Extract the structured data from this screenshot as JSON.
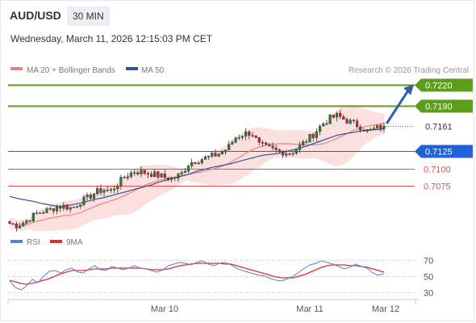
{
  "header": {
    "symbol": "AUD/USD",
    "interval": "30 MIN",
    "datetime": "Wednesday, March 11, 2026 12:15:03 PM CET"
  },
  "legend": {
    "ma20_label": "MA 20 + Bollinger Bands",
    "ma50_label": "MA 50",
    "credit": "Research © 2026 Trading Central",
    "rsi_label": "RSI",
    "ma9_label": "9MA"
  },
  "colors": {
    "resistance": "#5b9e1b",
    "support": "#1f63d6",
    "target": "#e74c4c",
    "current": "#333333",
    "ma20": "#f08080",
    "bands": "#fbd5d5",
    "ma50": "#2f5597",
    "rsi": "#5b7fd6",
    "rsi_ma": "#e03030",
    "candle_up": "#2e7d32",
    "candle_down": "#c62828",
    "arrow": "#2f5fa8"
  },
  "chart_data": [
    {
      "type": "line",
      "title": "",
      "xlabel": "",
      "ylabel": "",
      "x_ticks": [
        "Mar 10",
        "Mar 11",
        "Mar 12"
      ],
      "ylim": [
        0.7015,
        0.7232
      ],
      "levels": [
        {
          "value": 0.722,
          "label": "0.7220",
          "kind": "resistance"
        },
        {
          "value": 0.719,
          "label": "0.7190",
          "kind": "resistance"
        },
        {
          "value": 0.7161,
          "label": "0.7161",
          "kind": "current"
        },
        {
          "value": 0.7125,
          "label": "0.7125",
          "kind": "support"
        },
        {
          "value": 0.71,
          "label": "0.7100",
          "kind": "target"
        },
        {
          "value": 0.7075,
          "label": "0.7075",
          "kind": "target"
        }
      ],
      "price_path": [
        0.7021,
        0.7018,
        0.7024,
        0.7032,
        0.7038,
        0.704,
        0.7045,
        0.7046,
        0.7043,
        0.7052,
        0.7058,
        0.7066,
        0.707,
        0.7068,
        0.708,
        0.709,
        0.7096,
        0.7095,
        0.7093,
        0.709,
        0.7087,
        0.7086,
        0.7092,
        0.7108,
        0.7112,
        0.7115,
        0.7118,
        0.7122,
        0.713,
        0.7145,
        0.715,
        0.7152,
        0.7134,
        0.713,
        0.7126,
        0.7124,
        0.7122,
        0.713,
        0.714,
        0.715,
        0.7163,
        0.7172,
        0.7176,
        0.717,
        0.7165,
        0.716,
        0.7153,
        0.7158,
        0.7161
      ],
      "ma50_path": [
        0.706,
        0.7057,
        0.7055,
        0.7053,
        0.705,
        0.7048,
        0.7046,
        0.7046,
        0.7048,
        0.705,
        0.7053,
        0.7056,
        0.7058,
        0.7061,
        0.7064,
        0.7067,
        0.707,
        0.7073,
        0.7076,
        0.708,
        0.7083,
        0.7086,
        0.7089,
        0.7092,
        0.7096,
        0.7099,
        0.7102,
        0.7104,
        0.7106,
        0.7109,
        0.7112,
        0.7115,
        0.7118,
        0.712,
        0.7121,
        0.7123,
        0.7126,
        0.7129,
        0.7132,
        0.7136,
        0.714,
        0.7144,
        0.7148,
        0.715,
        0.7152,
        0.7154,
        0.7155,
        0.7156,
        0.7157
      ],
      "forecast_arrow": {
        "from": 0.7166,
        "to": 0.7217
      }
    },
    {
      "type": "line",
      "title": "",
      "series": [
        {
          "name": "RSI"
        },
        {
          "name": "9MA"
        }
      ],
      "y_ticks": [
        "70",
        "50",
        "30"
      ],
      "ylim": [
        20,
        80
      ],
      "rsi": [
        44,
        36,
        33,
        38,
        46,
        42,
        50,
        56,
        57,
        54,
        58,
        60,
        55,
        54,
        59,
        63,
        58,
        57,
        62,
        60,
        58,
        60,
        63,
        60,
        59,
        57,
        55,
        58,
        63,
        65,
        67,
        66,
        64,
        67,
        69,
        65,
        63,
        66,
        67,
        64,
        60,
        57,
        55,
        53,
        51,
        50,
        47,
        45,
        44,
        47,
        50,
        55,
        60,
        64,
        66,
        69,
        67,
        65,
        62,
        59,
        61,
        65,
        62,
        60,
        54,
        51,
        53
      ],
      "rsi_ma": [
        45,
        43,
        41,
        40,
        41,
        43,
        45,
        47,
        50,
        53,
        55,
        57,
        57,
        57,
        58,
        59,
        59,
        59,
        60,
        60,
        60,
        60,
        60,
        60,
        59,
        58,
        58,
        58,
        59,
        61,
        63,
        64,
        65,
        66,
        66,
        66,
        66,
        66,
        65,
        65,
        63,
        61,
        59,
        57,
        55,
        53,
        51,
        49,
        48,
        48,
        48,
        50,
        52,
        55,
        58,
        61,
        63,
        64,
        64,
        64,
        63,
        63,
        62,
        61,
        59,
        57,
        55
      ]
    }
  ]
}
